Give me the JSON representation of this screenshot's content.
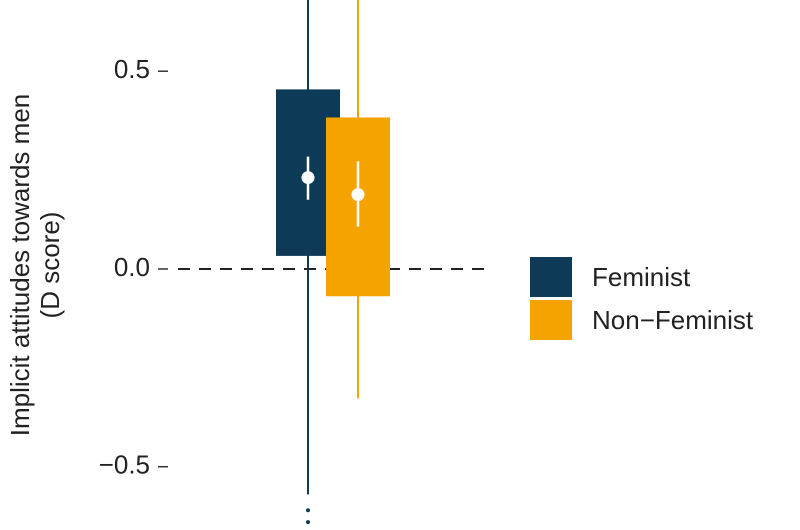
{
  "chart_data": {
    "type": "box",
    "ylabel": [
      "Implicit attitudes towards men",
      "(D score)"
    ],
    "ylim": [
      -0.66,
      0.68
    ],
    "yticks": [
      {
        "value": -0.5,
        "label": "−0.5"
      },
      {
        "value": 0,
        "label": "0.0"
      },
      0.5
    ],
    "reference_line": 0,
    "series": [
      {
        "name": "Feminist",
        "color": "#0d3b57",
        "q1": 0.033,
        "q3": 0.454,
        "whisker_low": -0.57,
        "whisker_high": 0.68,
        "mean": 0.231,
        "ci_low": 0.175,
        "ci_high": 0.284,
        "outliers": [
          -0.61,
          -0.64
        ]
      },
      {
        "name": "Non−Feminist",
        "color": "#f5a300",
        "q1": -0.069,
        "q3": 0.383,
        "whisker_low": -0.327,
        "whisker_high": 0.68,
        "mean": 0.188,
        "ci_low": 0.107,
        "ci_high": 0.272,
        "outliers": []
      }
    ]
  }
}
